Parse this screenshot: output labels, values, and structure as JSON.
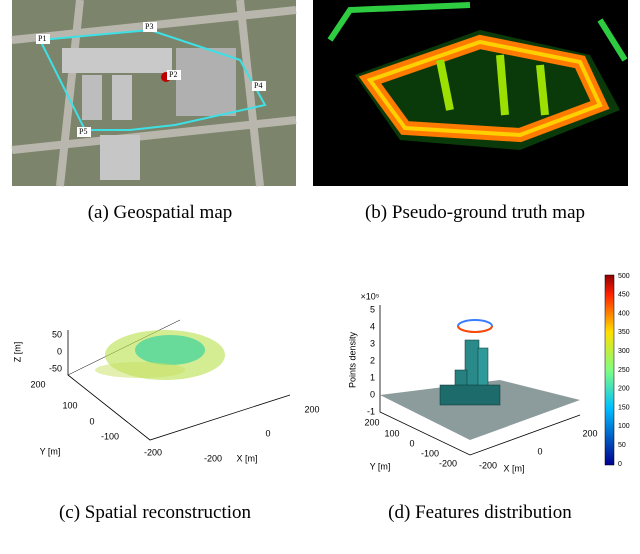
{
  "subfigures": [
    {
      "caption": "(a) Geospatial map",
      "labels": [
        "P1",
        "P2",
        "P3",
        "P4",
        "P5"
      ]
    },
    {
      "caption": "(b) Pseudo-ground truth map"
    },
    {
      "caption": "(c) Spatial reconstruction",
      "z_label": "Z [m]",
      "z_ticks": [
        "50",
        "0",
        "-50"
      ],
      "y_label": "Y [m]",
      "y_ticks": [
        "200",
        "100",
        "0",
        "-100",
        "-200"
      ],
      "x_label": "X [m]",
      "x_ticks": [
        "200",
        "0",
        "-200"
      ]
    },
    {
      "caption": "(d) Features distribution",
      "z_exponent": "×10⁵",
      "z_label": "Points density",
      "z_ticks": [
        "5",
        "4",
        "3",
        "2",
        "1",
        "0",
        "-1"
      ],
      "y_label": "Y [m]",
      "y_ticks": [
        "200",
        "100",
        "0",
        "-100",
        "-200"
      ],
      "x_label": "X [m]",
      "x_ticks": [
        "200",
        "0",
        "-200"
      ],
      "colorbar_ticks": [
        "500",
        "450",
        "400",
        "350",
        "300",
        "250",
        "200",
        "150",
        "100",
        "50",
        "0"
      ]
    }
  ]
}
